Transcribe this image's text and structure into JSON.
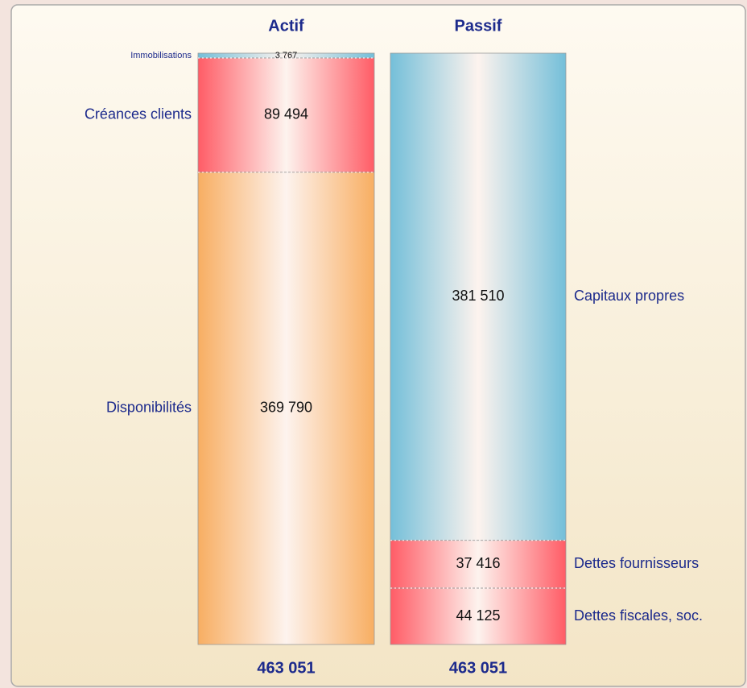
{
  "chart_data": {
    "type": "stacked_column",
    "columns": [
      {
        "name": "Actif",
        "total": "463 051",
        "segments": [
          {
            "name": "Immobilisations",
            "value": 3767,
            "value_label": "3 767",
            "color": "#74bfd9"
          },
          {
            "name": "Créances clients",
            "value": 89494,
            "value_label": "89 494",
            "color": "#ff5c66"
          },
          {
            "name": "Disponibilités",
            "value": 369790,
            "value_label": "369 790",
            "color": "#f8ae62"
          }
        ]
      },
      {
        "name": "Passif",
        "total": "463 051",
        "segments": [
          {
            "name": "Capitaux propres",
            "value": 381510,
            "value_label": "381 510",
            "color": "#74bfd9"
          },
          {
            "name": "Dettes fournisseurs",
            "value": 37416,
            "value_label": "37 416",
            "color": "#ff5c66"
          },
          {
            "name": "Dettes fiscales, soc.",
            "value": 44125,
            "value_label": "44 125",
            "color": "#ff5c66"
          }
        ]
      }
    ]
  }
}
